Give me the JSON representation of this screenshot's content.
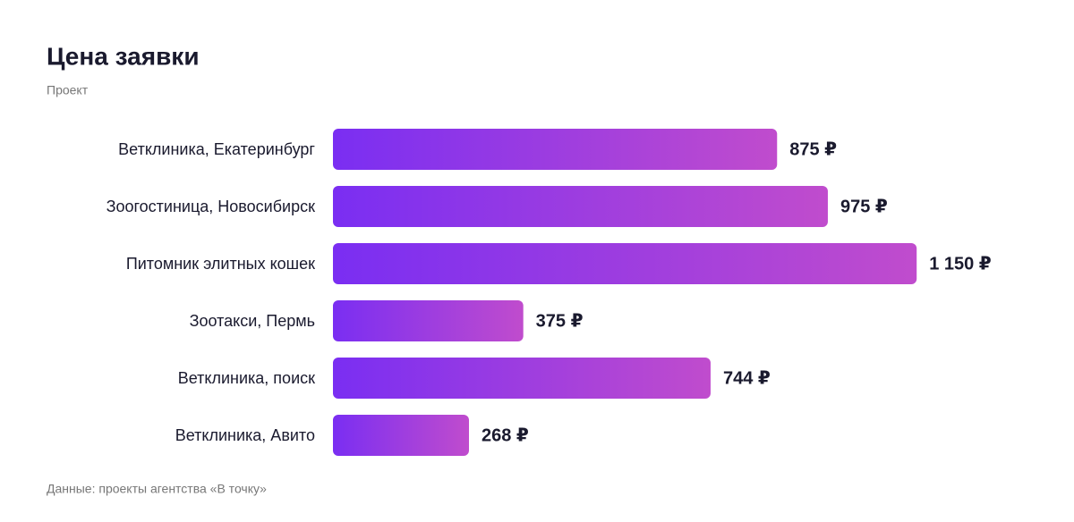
{
  "chart_data": {
    "type": "bar",
    "orientation": "horizontal",
    "title": "Цена заявки",
    "subtitle": "Проект",
    "source": "Данные: проекты агентства «В точку»",
    "categories": [
      "Ветклиника, Екатеринбург",
      "Зоогостиница, Новосибирск",
      "Питомник элитных кошек",
      "Зоотакси, Пермь",
      "Ветклиника, поиск",
      "Ветклиника, Авито"
    ],
    "values": [
      875,
      975,
      1150,
      375,
      744,
      268
    ],
    "value_labels": [
      "875 ₽",
      "975 ₽",
      "1 150 ₽",
      "375 ₽",
      "744 ₽",
      "268 ₽"
    ],
    "gradient": [
      "#7a2ef2",
      "#c04ccd"
    ],
    "xlim": [
      0,
      1400
    ]
  }
}
